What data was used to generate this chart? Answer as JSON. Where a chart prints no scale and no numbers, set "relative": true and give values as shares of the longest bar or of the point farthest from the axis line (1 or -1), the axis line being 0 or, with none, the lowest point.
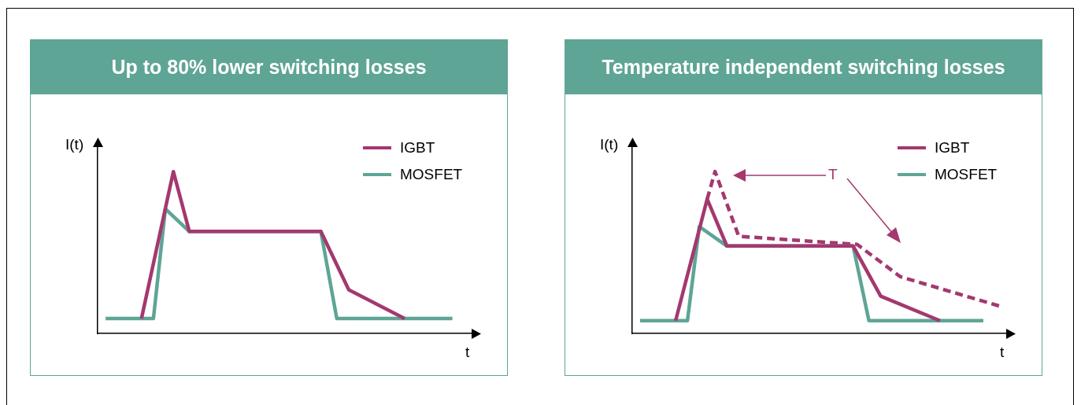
{
  "chart_data": [
    {
      "type": "line",
      "title": "Up to 80% lower switching losses",
      "xlabel": "t",
      "ylabel": "I(t)",
      "relative": true,
      "grid": false,
      "legend": "top right",
      "marker": "none",
      "categories": [
        null,
        null,
        null,
        null,
        null,
        null,
        null,
        null,
        null,
        null,
        null,
        null,
        null,
        null,
        null,
        null,
        null,
        null,
        null,
        null,
        null,
        null,
        null,
        null,
        null,
        null,
        null,
        null,
        null,
        null,
        null,
        null,
        null,
        null,
        null,
        null,
        null,
        null,
        null,
        null,
        null,
        null,
        null,
        null,
        null,
        null,
        null,
        null,
        null,
        null,
        null,
        null,
        null,
        null,
        null,
        null,
        null,
        null,
        null,
        null,
        null,
        null,
        null,
        null,
        null,
        null,
        null,
        null,
        null,
        null,
        null,
        null,
        null,
        null,
        null,
        null,
        null,
        null,
        null,
        null,
        null,
        null,
        null,
        null,
        null,
        null,
        null,
        null,
        null,
        null,
        null,
        null,
        null,
        null,
        null,
        null
      ],
      "series": [
        {
          "name": "IGBT",
          "color": "#a4386f",
          "values": [
            null,
            null,
            null,
            null,
            null,
            null,
            null,
            null,
            null,
            null,
            null,
            0.092,
            null,
            null,
            null,
            null,
            null,
            null,
            null,
            1,
            null,
            null,
            null,
            0.63,
            null,
            null,
            null,
            null,
            null,
            null,
            null,
            null,
            null,
            null,
            null,
            null,
            null,
            null,
            null,
            null,
            null,
            null,
            null,
            null,
            null,
            null,
            null,
            null,
            null,
            null,
            null,
            null,
            null,
            null,
            null,
            null,
            0.63,
            null,
            null,
            null,
            null,
            null,
            null,
            0.27,
            null,
            null,
            null,
            null,
            null,
            null,
            null,
            null,
            null,
            null,
            null,
            null,
            null,
            0.092,
            null,
            null,
            null,
            null,
            null,
            null,
            null,
            null,
            null,
            null,
            null,
            null,
            null,
            null,
            null,
            null,
            null,
            null
          ]
        },
        {
          "name": "MOSFET",
          "color": "#5ea595",
          "values": [
            null,
            null,
            0.092,
            null,
            null,
            null,
            null,
            null,
            null,
            null,
            null,
            null,
            null,
            null,
            0.092,
            null,
            null,
            0.77,
            null,
            null,
            null,
            null,
            null,
            0.63,
            null,
            null,
            null,
            null,
            null,
            null,
            null,
            null,
            null,
            null,
            null,
            null,
            null,
            null,
            null,
            null,
            null,
            null,
            null,
            null,
            null,
            null,
            null,
            null,
            null,
            null,
            null,
            null,
            null,
            null,
            null,
            null,
            0.63,
            null,
            null,
            null,
            0.092,
            null,
            null,
            null,
            null,
            null,
            null,
            null,
            null,
            null,
            null,
            null,
            null,
            null,
            null,
            null,
            null,
            null,
            null,
            null,
            null,
            null,
            null,
            null,
            null,
            null,
            null,
            null,
            null,
            0.092,
            null,
            null,
            null,
            null,
            null,
            null
          ]
        }
      ]
    },
    {
      "type": "line",
      "title": "Temperature independent switching losses",
      "xlabel": "t",
      "ylabel": "I(t)",
      "relative": true,
      "grid": false,
      "legend": "top right",
      "marker": "none",
      "annotations": [
        "T"
      ],
      "categories": [
        null,
        null,
        null,
        null,
        null,
        null,
        null,
        null,
        null,
        null,
        null,
        null,
        null,
        null,
        null,
        null,
        null,
        null,
        null,
        null,
        null,
        null,
        null,
        null,
        null,
        null,
        null,
        null,
        null,
        null,
        null,
        null,
        null,
        null,
        null,
        null,
        null,
        null,
        null,
        null,
        null,
        null,
        null,
        null,
        null,
        null,
        null,
        null,
        null,
        null,
        null,
        null,
        null,
        null,
        null,
        null,
        null,
        null,
        null,
        null,
        null,
        null,
        null,
        null,
        null,
        null,
        null,
        null,
        null,
        null,
        null,
        null,
        null,
        null,
        null,
        null,
        null,
        null,
        null,
        null,
        null,
        null,
        null,
        null,
        null,
        null,
        null,
        null,
        null,
        null,
        null,
        null,
        null,
        null,
        null,
        null,
        null
      ],
      "series": [
        {
          "name": "IGBT",
          "color": "#a4386f",
          "values": [
            null,
            null,
            null,
            null,
            null,
            null,
            null,
            null,
            null,
            null,
            null,
            0.079,
            null,
            null,
            null,
            null,
            null,
            null,
            null,
            0.83,
            null,
            null,
            null,
            null,
            0.54,
            null,
            null,
            null,
            null,
            null,
            null,
            null,
            null,
            null,
            null,
            null,
            null,
            null,
            null,
            null,
            null,
            null,
            null,
            null,
            null,
            null,
            null,
            null,
            null,
            null,
            null,
            null,
            null,
            null,
            null,
            null,
            0.54,
            null,
            null,
            null,
            null,
            null,
            null,
            0.23,
            null,
            null,
            null,
            null,
            null,
            null,
            null,
            null,
            null,
            null,
            null,
            null,
            null,
            null,
            0.079,
            null,
            null,
            null,
            null,
            null,
            null,
            null,
            null,
            null,
            null,
            null,
            null,
            null,
            null,
            null,
            null,
            null,
            null
          ]
        },
        {
          "name": "MOSFET",
          "color": "#5ea595",
          "values": [
            null,
            null,
            0.079,
            null,
            null,
            null,
            null,
            null,
            null,
            null,
            null,
            null,
            null,
            null,
            0.079,
            null,
            null,
            0.66,
            null,
            null,
            null,
            null,
            null,
            null,
            0.54,
            null,
            null,
            null,
            null,
            null,
            null,
            null,
            null,
            null,
            null,
            null,
            null,
            null,
            null,
            null,
            null,
            null,
            null,
            null,
            null,
            null,
            null,
            null,
            null,
            null,
            null,
            null,
            null,
            null,
            null,
            null,
            0.54,
            null,
            null,
            null,
            0.079,
            null,
            null,
            null,
            null,
            null,
            null,
            null,
            null,
            null,
            null,
            null,
            null,
            null,
            null,
            null,
            null,
            null,
            null,
            null,
            null,
            null,
            null,
            null,
            null,
            null,
            null,
            null,
            null,
            0.079,
            null,
            null,
            null,
            null,
            null,
            null,
            null
          ]
        },
        {
          "color": "#a4386f",
          "line_style": "dashed",
          "values": [
            null,
            null,
            null,
            null,
            null,
            null,
            null,
            null,
            null,
            null,
            null,
            null,
            null,
            null,
            null,
            null,
            null,
            null,
            null,
            0.83,
            null,
            1,
            null,
            null,
            null,
            null,
            null,
            0.6,
            null,
            null,
            null,
            null,
            null,
            null,
            null,
            null,
            null,
            null,
            null,
            null,
            null,
            null,
            null,
            null,
            null,
            null,
            null,
            null,
            null,
            null,
            null,
            null,
            null,
            null,
            null,
            null,
            null,
            0.55,
            null,
            null,
            null,
            null,
            null,
            null,
            null,
            null,
            null,
            null,
            0.35,
            null,
            null,
            null,
            null,
            null,
            null,
            null,
            null,
            null,
            null,
            null,
            null,
            null,
            null,
            null,
            null,
            null,
            null,
            null,
            null,
            null,
            null,
            null,
            null,
            0.17,
            null,
            null,
            null
          ]
        }
      ]
    }
  ]
}
